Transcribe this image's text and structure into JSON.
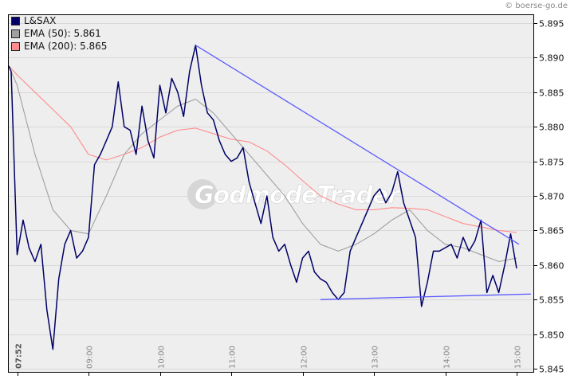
{
  "copyright": "© boerse-go.de",
  "watermark": "GodmodeTrader",
  "legend": [
    {
      "label": "L&SAX",
      "color": "#000066"
    },
    {
      "label": "EMA (50): 5.861",
      "color": "#a0a0a0"
    },
    {
      "label": "EMA (200): 5.865",
      "color": "#ff8c8c"
    }
  ],
  "colors": {
    "plot_background": "#eeeeee",
    "gridline": "#d8d8d8",
    "price_line": "#000066",
    "ema50": "#a0a0a0",
    "ema200": "#ff8c8c",
    "trendline": "#5a5aff",
    "axis": "#000000"
  },
  "chart_data": {
    "type": "line",
    "title": "L&SAX",
    "xlabel": "",
    "ylabel": "",
    "ylim": [
      5.845,
      5.896
    ],
    "y_ticks": [
      "5.845",
      "5.850",
      "5.855",
      "5.860",
      "5.865",
      "5.870",
      "5.875",
      "5.880",
      "5.885",
      "5.890",
      "5.895"
    ],
    "x_ticks": [
      "07:52",
      "09:00",
      "10:00",
      "11:00",
      "12:00",
      "13:00",
      "14:00",
      "15:00"
    ],
    "grid": true,
    "legend_position": "top-left",
    "series": [
      {
        "name": "L&SAX",
        "color": "#000066",
        "x": [
          "07:52",
          "07:55",
          "08:00",
          "08:05",
          "08:10",
          "08:15",
          "08:20",
          "08:25",
          "08:30",
          "08:35",
          "08:40",
          "08:45",
          "08:50",
          "08:55",
          "09:00",
          "09:05",
          "09:10",
          "09:15",
          "09:20",
          "09:25",
          "09:30",
          "09:35",
          "09:40",
          "09:45",
          "09:50",
          "09:55",
          "10:00",
          "10:05",
          "10:10",
          "10:15",
          "10:20",
          "10:25",
          "10:30",
          "10:35",
          "10:40",
          "10:45",
          "10:50",
          "10:55",
          "11:00",
          "11:05",
          "11:10",
          "11:15",
          "11:20",
          "11:25",
          "11:30",
          "11:35",
          "11:40",
          "11:45",
          "11:50",
          "11:55",
          "12:00",
          "12:05",
          "12:10",
          "12:15",
          "12:20",
          "12:25",
          "12:30",
          "12:35",
          "12:40",
          "12:45",
          "12:50",
          "12:55",
          "13:00",
          "13:05",
          "13:10",
          "13:15",
          "13:20",
          "13:25",
          "13:30",
          "13:35",
          "13:40",
          "13:45",
          "13:50",
          "13:55",
          "14:00",
          "14:05",
          "14:10",
          "14:15",
          "14:20",
          "14:25",
          "14:30",
          "14:35",
          "14:40",
          "14:45",
          "14:50",
          "14:55",
          "15:00"
        ],
        "values": [
          5.8888,
          5.888,
          5.8615,
          5.8665,
          5.8625,
          5.8605,
          5.863,
          5.8535,
          5.8478,
          5.858,
          5.863,
          5.865,
          5.861,
          5.862,
          5.864,
          5.8745,
          5.876,
          5.878,
          5.88,
          5.8865,
          5.88,
          5.8795,
          5.876,
          5.883,
          5.878,
          5.8755,
          5.886,
          5.882,
          5.887,
          5.885,
          5.8815,
          5.888,
          5.8918,
          5.886,
          5.882,
          5.881,
          5.878,
          5.876,
          5.875,
          5.8755,
          5.877,
          5.872,
          5.869,
          5.866,
          5.87,
          5.864,
          5.862,
          5.863,
          5.86,
          5.8575,
          5.861,
          5.862,
          5.859,
          5.858,
          5.8575,
          5.856,
          5.855,
          5.856,
          5.862,
          5.864,
          5.866,
          5.868,
          5.87,
          5.871,
          5.869,
          5.8705,
          5.8735,
          5.869,
          5.8665,
          5.864,
          5.854,
          5.8575,
          5.862,
          5.862,
          5.8625,
          5.863,
          5.861,
          5.864,
          5.862,
          5.8635,
          5.8665,
          5.856,
          5.8585,
          5.856,
          5.86,
          5.8645,
          5.8595
        ]
      },
      {
        "name": "EMA (50)",
        "color": "#a0a0a0",
        "x": [
          "07:52",
          "08:00",
          "08:15",
          "08:30",
          "08:45",
          "09:00",
          "09:15",
          "09:30",
          "09:45",
          "10:00",
          "10:15",
          "10:30",
          "10:45",
          "11:00",
          "11:15",
          "11:30",
          "11:45",
          "12:00",
          "12:15",
          "12:30",
          "12:45",
          "13:00",
          "13:15",
          "13:30",
          "13:45",
          "14:00",
          "14:15",
          "14:30",
          "14:45",
          "15:00"
        ],
        "values": [
          5.8888,
          5.886,
          5.876,
          5.868,
          5.865,
          5.8645,
          5.87,
          5.876,
          5.879,
          5.881,
          5.883,
          5.884,
          5.882,
          5.879,
          5.876,
          5.873,
          5.87,
          5.866,
          5.863,
          5.862,
          5.863,
          5.8645,
          5.8665,
          5.868,
          5.865,
          5.863,
          5.8625,
          5.8615,
          5.8605,
          5.861
        ]
      },
      {
        "name": "EMA (200)",
        "color": "#ff8c8c",
        "x": [
          "07:52",
          "08:00",
          "08:15",
          "08:30",
          "08:45",
          "09:00",
          "09:15",
          "09:30",
          "09:45",
          "10:00",
          "10:15",
          "10:30",
          "10:45",
          "11:00",
          "11:15",
          "11:30",
          "11:45",
          "12:00",
          "12:15",
          "12:30",
          "12:45",
          "13:00",
          "13:15",
          "13:30",
          "13:45",
          "14:00",
          "14:15",
          "14:30",
          "14:45",
          "15:00"
        ],
        "values": [
          5.8888,
          5.8875,
          5.885,
          5.8825,
          5.88,
          5.876,
          5.8752,
          5.876,
          5.877,
          5.8785,
          5.8795,
          5.8798,
          5.879,
          5.8782,
          5.8778,
          5.8765,
          5.8745,
          5.8722,
          5.87,
          5.8688,
          5.868,
          5.868,
          5.8683,
          5.8682,
          5.868,
          5.867,
          5.866,
          5.8655,
          5.865,
          5.8647
        ]
      }
    ],
    "trendlines": [
      {
        "name": "resistance",
        "color": "#5a5aff",
        "from": {
          "x": "10:30",
          "y": 5.8918
        },
        "to": {
          "x": "15:02",
          "y": 5.863
        }
      },
      {
        "name": "support",
        "color": "#5a5aff",
        "from": {
          "x": "12:15",
          "y": 5.855
        },
        "to": {
          "x": "15:12",
          "y": 5.8558
        }
      }
    ]
  }
}
